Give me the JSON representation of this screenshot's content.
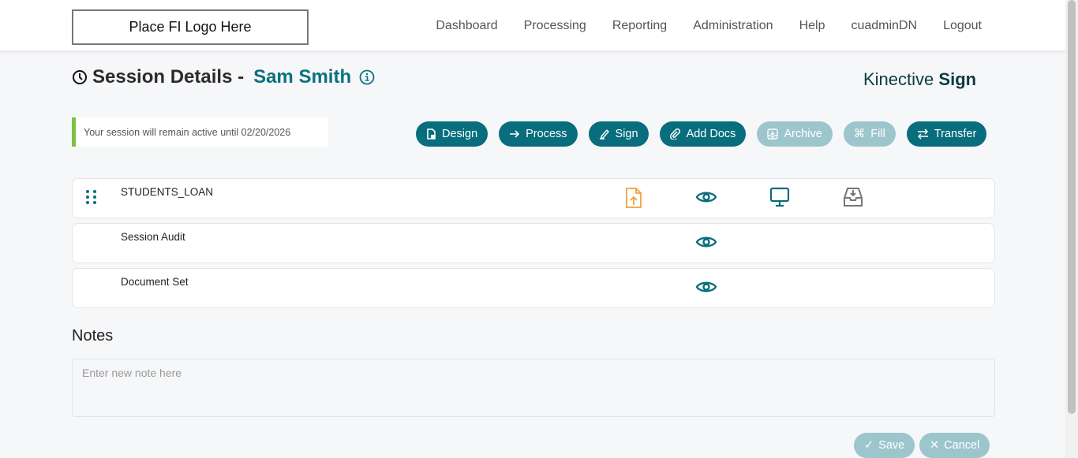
{
  "header": {
    "logo": "Place FI Logo Here",
    "nav": [
      "Dashboard",
      "Processing",
      "Reporting",
      "Administration",
      "Help",
      "cuadminDN",
      "Logout"
    ]
  },
  "page": {
    "title": "Session Details -",
    "name": "Sam Smith",
    "brand_light": "Kinective",
    "brand_bold": "Sign"
  },
  "notice": "Your session will remain active until 02/20/2026",
  "actions": [
    {
      "label": "Design",
      "icon": "document-icon",
      "enabled": true
    },
    {
      "label": "Process",
      "icon": "arrow-right-icon",
      "enabled": true
    },
    {
      "label": "Sign",
      "icon": "pen-icon",
      "enabled": true
    },
    {
      "label": "Add Docs",
      "icon": "paperclip-icon",
      "enabled": true
    },
    {
      "label": "Archive",
      "icon": "archive-icon",
      "enabled": false
    },
    {
      "label": "Fill",
      "icon": "command-icon",
      "enabled": false
    },
    {
      "label": "Transfer",
      "icon": "transfer-icon",
      "enabled": true
    }
  ],
  "documents": [
    {
      "name": "STUDENTS_LOAN",
      "icons": [
        "upload-file-icon",
        "eye-icon",
        "monitor-icon",
        "inbox-download-icon"
      ]
    },
    {
      "name": "Session Audit",
      "icons": [
        "eye-icon"
      ]
    },
    {
      "name": "Document Set",
      "icons": [
        "eye-icon"
      ]
    }
  ],
  "notes": {
    "heading": "Notes",
    "placeholder": "Enter new note here"
  },
  "footer": {
    "save": "Save",
    "cancel": "Cancel"
  },
  "colors": {
    "primary": "#086d7d",
    "disabled": "#9cc5cc",
    "accent_green": "#7dc142",
    "upload_orange": "#f0a040"
  }
}
